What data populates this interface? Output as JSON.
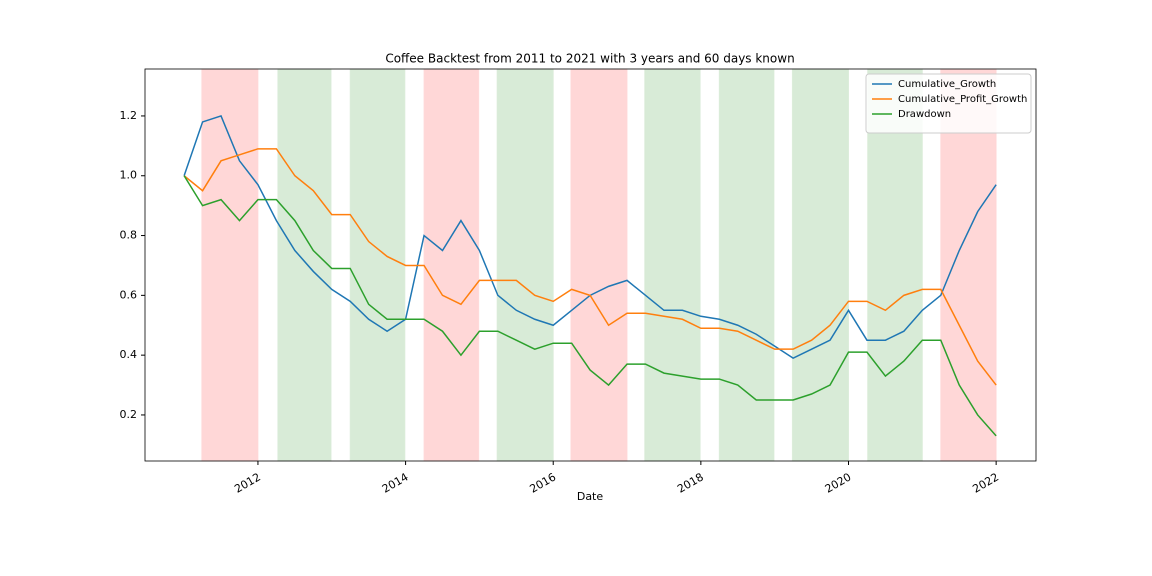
{
  "chart_data": {
    "type": "line",
    "title": "Coffee Backtest from 2011 to 2021 with 3 years and 60 days known",
    "x_label": "Date",
    "x": [
      2011.0,
      2011.25,
      2011.5,
      2011.75,
      2012.0,
      2012.25,
      2012.5,
      2012.75,
      2013.0,
      2013.25,
      2013.5,
      2013.75,
      2014.0,
      2014.25,
      2014.5,
      2014.75,
      2015.0,
      2015.25,
      2015.5,
      2015.75,
      2016.0,
      2016.25,
      2016.5,
      2016.75,
      2017.0,
      2017.25,
      2017.5,
      2017.75,
      2018.0,
      2018.25,
      2018.5,
      2018.75,
      2019.0,
      2019.25,
      2019.5,
      2019.75,
      2020.0,
      2020.25,
      2020.5,
      2020.75,
      2021.0,
      2021.25,
      2021.5,
      2021.75,
      2022.0
    ],
    "series": [
      {
        "name": "Cumulative_Growth",
        "color": "#1f77b4",
        "values": [
          1.0,
          1.18,
          1.2,
          1.05,
          0.97,
          0.85,
          0.75,
          0.68,
          0.62,
          0.58,
          0.52,
          0.48,
          0.52,
          0.8,
          0.75,
          0.85,
          0.75,
          0.6,
          0.55,
          0.52,
          0.5,
          0.55,
          0.6,
          0.63,
          0.65,
          0.6,
          0.55,
          0.55,
          0.53,
          0.52,
          0.5,
          0.47,
          0.43,
          0.39,
          0.42,
          0.45,
          0.55,
          0.45,
          0.45,
          0.48,
          0.55,
          0.6,
          0.75,
          0.88,
          0.97
        ]
      },
      {
        "name": "Cumulative_Profit_Growth",
        "color": "#ff7f0e",
        "values": [
          1.0,
          0.95,
          1.05,
          1.07,
          1.09,
          1.09,
          1.0,
          0.95,
          0.87,
          0.87,
          0.78,
          0.73,
          0.7,
          0.7,
          0.6,
          0.57,
          0.65,
          0.65,
          0.65,
          0.6,
          0.58,
          0.62,
          0.6,
          0.5,
          0.54,
          0.54,
          0.53,
          0.52,
          0.49,
          0.49,
          0.48,
          0.45,
          0.42,
          0.42,
          0.45,
          0.5,
          0.58,
          0.58,
          0.55,
          0.6,
          0.62,
          0.62,
          0.5,
          0.38,
          0.3
        ]
      },
      {
        "name": "Drawdown",
        "color": "#2ca02c",
        "values": [
          1.0,
          0.9,
          0.92,
          0.85,
          0.92,
          0.92,
          0.85,
          0.75,
          0.69,
          0.69,
          0.57,
          0.52,
          0.52,
          0.52,
          0.48,
          0.4,
          0.48,
          0.48,
          0.45,
          0.42,
          0.44,
          0.44,
          0.35,
          0.3,
          0.37,
          0.37,
          0.34,
          0.33,
          0.32,
          0.32,
          0.3,
          0.25,
          0.25,
          0.25,
          0.27,
          0.3,
          0.41,
          0.41,
          0.33,
          0.38,
          0.45,
          0.45,
          0.3,
          0.2,
          0.13
        ]
      }
    ],
    "regions": [
      {
        "start": 2011.24,
        "end": 2012.0,
        "color": "#ffd7d7"
      },
      {
        "start": 2012.27,
        "end": 2012.99,
        "color": "#d8ebd7"
      },
      {
        "start": 2013.25,
        "end": 2013.99,
        "color": "#d8ebd7"
      },
      {
        "start": 2014.25,
        "end": 2014.99,
        "color": "#ffd7d7"
      },
      {
        "start": 2015.24,
        "end": 2016.0,
        "color": "#d8ebd7"
      },
      {
        "start": 2016.24,
        "end": 2017.0,
        "color": "#ffd7d7"
      },
      {
        "start": 2017.24,
        "end": 2017.99,
        "color": "#d8ebd7"
      },
      {
        "start": 2018.25,
        "end": 2018.99,
        "color": "#d8ebd7"
      },
      {
        "start": 2019.24,
        "end": 2020.0,
        "color": "#d8ebd7"
      },
      {
        "start": 2020.26,
        "end": 2021.0,
        "color": "#d8ebd7"
      },
      {
        "start": 2021.25,
        "end": 2022.0,
        "color": "#ffd7d7"
      }
    ],
    "xlim": [
      2010.47,
      2022.54
    ],
    "ylim": [
      0.046,
      1.357
    ],
    "xticks": [
      2012,
      2014,
      2016,
      2018,
      2020,
      2022
    ],
    "yticks": [
      0.2,
      0.4,
      0.6,
      0.8,
      {
        "value": 1.0,
        "label": "1.0"
      },
      1.2
    ],
    "grid": false,
    "legend": "upper right"
  }
}
